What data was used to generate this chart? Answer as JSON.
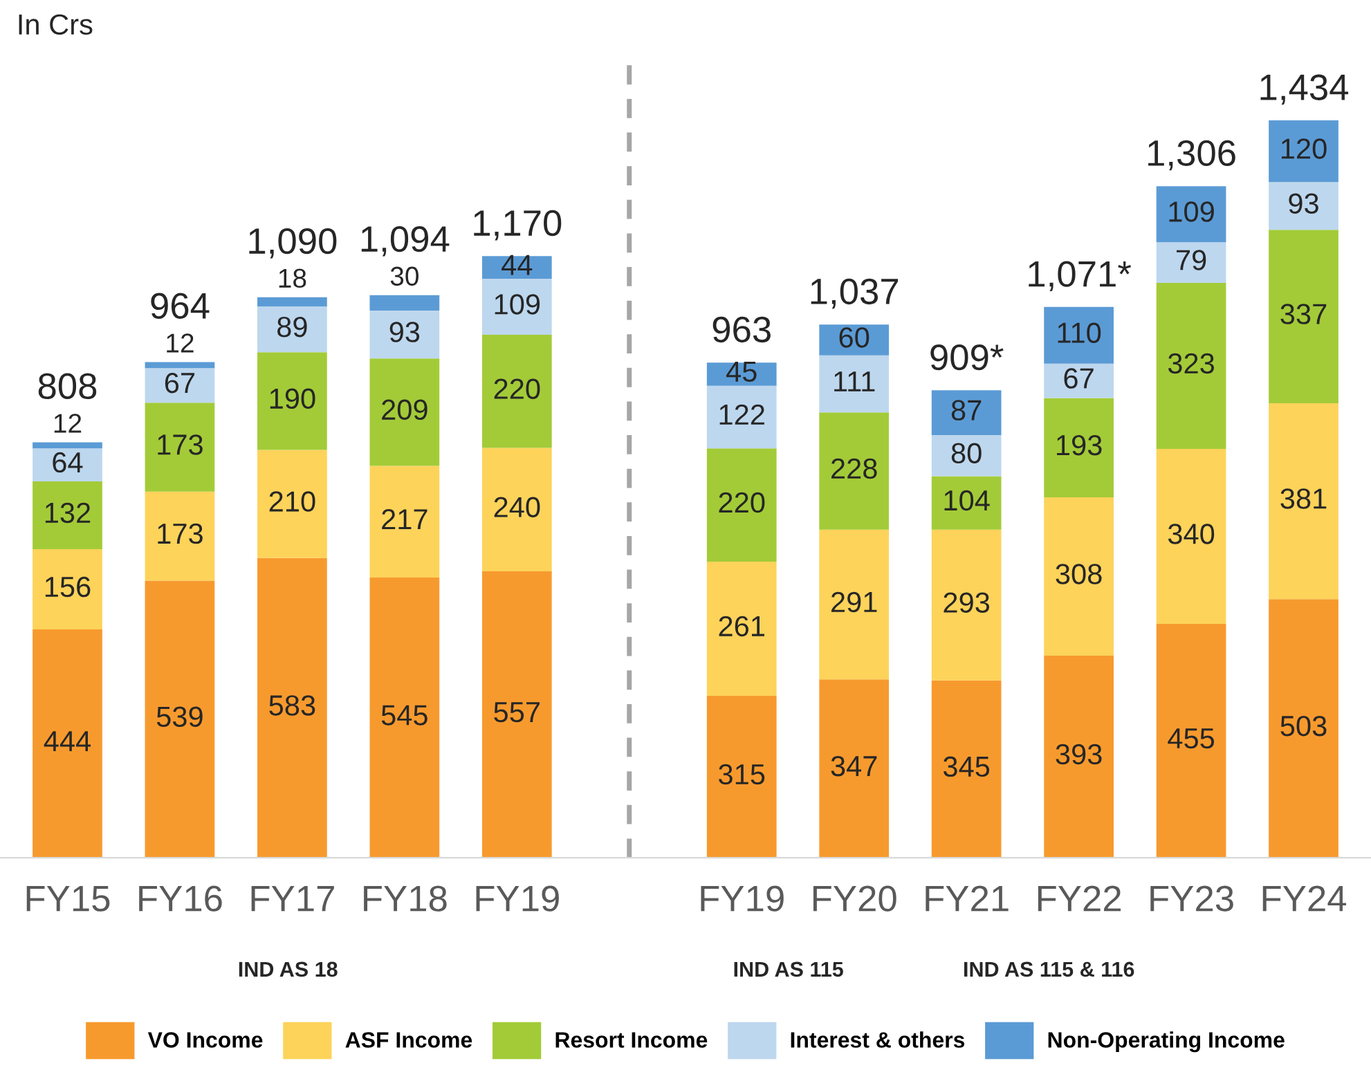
{
  "chart_data": {
    "type": "bar",
    "stacked": true,
    "data_labels": true,
    "legend": "bottom",
    "categories": [
      "FY15",
      "FY16",
      "FY17",
      "FY18",
      "FY19",
      null,
      "FY19",
      "FY20",
      "FY21",
      "FY22",
      "FY23",
      "FY24"
    ],
    "series": [
      {
        "name": "VO Income",
        "color": "#f79a2e",
        "values": [
          444,
          539,
          583,
          545,
          557,
          null,
          315,
          347,
          345,
          393,
          455,
          503
        ]
      },
      {
        "name": "ASF Income",
        "color": "#fdd35a",
        "values": [
          156,
          173,
          210,
          217,
          240,
          null,
          261,
          291,
          293,
          308,
          340,
          381
        ]
      },
      {
        "name": "Resort Income",
        "color": "#a3cb38",
        "values": [
          132,
          173,
          190,
          209,
          220,
          null,
          220,
          228,
          104,
          193,
          323,
          337
        ]
      },
      {
        "name": "Interest & others",
        "color": "#bdd7ee",
        "values": [
          64,
          67,
          89,
          93,
          109,
          null,
          122,
          111,
          80,
          67,
          79,
          93
        ]
      },
      {
        "name": "Non-Operating Income",
        "color": "#5b9bd5",
        "values": [
          12,
          12,
          18,
          30,
          44,
          null,
          45,
          60,
          87,
          110,
          109,
          120
        ]
      }
    ],
    "totals": [
      "808",
      "964",
      "1,090",
      "1,094",
      "1,170",
      null,
      "963",
      "1,037",
      "909*",
      "1,071*",
      "1,306",
      "1,434"
    ],
    "ref_lines": [
      {
        "axis": "x",
        "color": "#a6a6a6",
        "line_style": "dashed"
      }
    ],
    "annotations": [
      "In Crs",
      "IND AS 18",
      "IND AS 115",
      "IND AS 115 & 116"
    ]
  }
}
